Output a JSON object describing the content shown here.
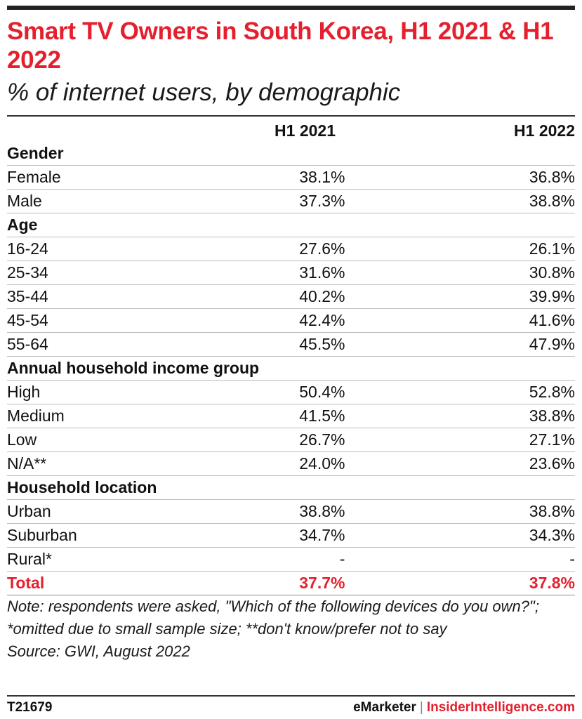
{
  "chart_data": {
    "type": "table",
    "title": "Smart TV Owners in South Korea, H1 2021 & H1 2022",
    "subtitle": "% of internet users, by demographic",
    "columns": [
      "H1 2021",
      "H1 2022"
    ],
    "rows": [
      {
        "kind": "group",
        "label": "Gender"
      },
      {
        "kind": "data",
        "label": "Female",
        "values": [
          "38.1%",
          "36.8%"
        ]
      },
      {
        "kind": "data",
        "label": "Male",
        "values": [
          "37.3%",
          "38.8%"
        ]
      },
      {
        "kind": "group",
        "label": "Age"
      },
      {
        "kind": "data",
        "label": "16-24",
        "values": [
          "27.6%",
          "26.1%"
        ]
      },
      {
        "kind": "data",
        "label": "25-34",
        "values": [
          "31.6%",
          "30.8%"
        ]
      },
      {
        "kind": "data",
        "label": "35-44",
        "values": [
          "40.2%",
          "39.9%"
        ]
      },
      {
        "kind": "data",
        "label": "45-54",
        "values": [
          "42.4%",
          "41.6%"
        ]
      },
      {
        "kind": "data",
        "label": "55-64",
        "values": [
          "45.5%",
          "47.9%"
        ]
      },
      {
        "kind": "group",
        "label": "Annual household income group"
      },
      {
        "kind": "data",
        "label": "High",
        "values": [
          "50.4%",
          "52.8%"
        ]
      },
      {
        "kind": "data",
        "label": "Medium",
        "values": [
          "41.5%",
          "38.8%"
        ]
      },
      {
        "kind": "data",
        "label": "Low",
        "values": [
          "26.7%",
          "27.1%"
        ]
      },
      {
        "kind": "data",
        "label": "N/A**",
        "values": [
          "24.0%",
          "23.6%"
        ]
      },
      {
        "kind": "group",
        "label": "Household location"
      },
      {
        "kind": "data",
        "label": "Urban",
        "values": [
          "38.8%",
          "38.8%"
        ]
      },
      {
        "kind": "data",
        "label": "Suburban",
        "values": [
          "34.7%",
          "34.3%"
        ]
      },
      {
        "kind": "data",
        "label": "Rural*",
        "values": [
          "-",
          "-"
        ]
      },
      {
        "kind": "total",
        "label": "Total",
        "values": [
          "37.7%",
          "37.8%"
        ]
      }
    ],
    "note": "Note: respondents were asked, \"Which of the following devices do you own?\"; *omitted due to small sample size; **don't know/prefer not to say",
    "source": "Source: GWI, August 2022"
  },
  "footer": {
    "id": "T21679",
    "brand_emarketer": "eMarketer",
    "brand_separator": "|",
    "brand_ii": "InsiderIntelligence.com"
  },
  "colors": {
    "accent": "#e4202e",
    "text": "#111111",
    "rule": "#bdbdbd"
  }
}
